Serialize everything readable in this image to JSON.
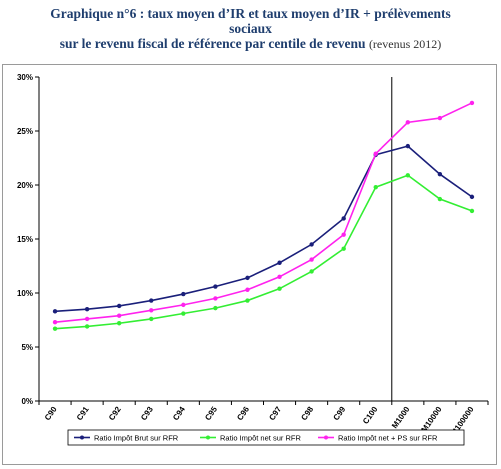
{
  "title": {
    "line1": "Graphique n°6 : taux moyen d’IR et taux moyen d’IR + prélèvements",
    "line2": "sociaux",
    "line3": "sur le revenu fiscal de référence par centile de revenu",
    "line3_note": "(revenus 2012)"
  },
  "chart_data": {
    "type": "line",
    "title": "Graphique n°6 : taux moyen d’IR et taux moyen d’IR + prélèvements sociaux sur le revenu fiscal de référence par centile de revenu (revenus 2012)",
    "xlabel": "",
    "ylabel": "",
    "ylim": [
      0,
      30
    ],
    "yticks": [
      "0%",
      "5%",
      "10%",
      "15%",
      "20%",
      "25%",
      "30%"
    ],
    "grid": false,
    "legend_position": "bottom",
    "categories": [
      "C90",
      "C91",
      "C92",
      "C93",
      "C94",
      "C95",
      "C96",
      "C97",
      "C98",
      "C99",
      "C100",
      "M1000",
      "M10000",
      "M100000"
    ],
    "series": [
      {
        "name": "Ratio Impôt Brut sur RFR",
        "color": "#1a1f7a",
        "values": [
          8.3,
          8.5,
          8.8,
          9.3,
          9.9,
          10.6,
          11.4,
          12.8,
          14.5,
          16.9,
          22.8,
          23.6,
          21.0,
          18.9
        ]
      },
      {
        "name": "Ratio Impôt net sur RFR",
        "color": "#33ee33",
        "values": [
          6.7,
          6.9,
          7.2,
          7.6,
          8.1,
          8.6,
          9.3,
          10.4,
          12.0,
          14.1,
          19.8,
          20.9,
          18.7,
          17.6
        ]
      },
      {
        "name": "Ratio Impôt net + PS sur RFR",
        "color": "#ff22ee",
        "values": [
          7.3,
          7.6,
          7.9,
          8.4,
          8.9,
          9.5,
          10.3,
          11.5,
          13.1,
          15.4,
          22.9,
          25.8,
          26.2,
          27.6
        ]
      }
    ],
    "separator_after_category": "C100"
  }
}
